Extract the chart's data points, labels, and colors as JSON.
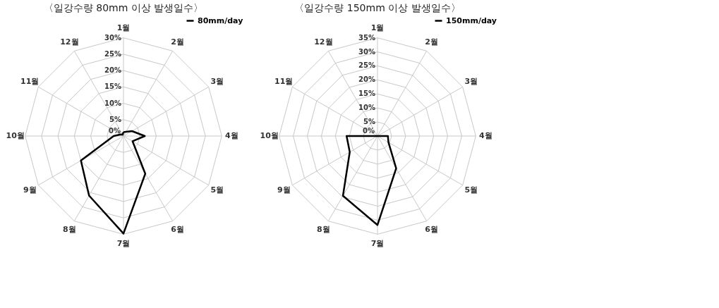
{
  "chart_data": [
    {
      "type": "radar",
      "title": "〈일강수량 80mm 이상 발생일수〉",
      "categories": [
        "1월",
        "2월",
        "3월",
        "4월",
        "5월",
        "6월",
        "7월",
        "8월",
        "9월",
        "10월",
        "11월",
        "12월"
      ],
      "ylim": [
        0,
        30
      ],
      "yticks": [
        {
          "value": 0,
          "label": "0%"
        },
        {
          "value": 5,
          "label": "5%"
        },
        {
          "value": 10,
          "label": "10%"
        },
        {
          "value": 15,
          "label": "15%"
        },
        {
          "value": 20,
          "label": "20%"
        },
        {
          "value": 25,
          "label": "25%"
        },
        {
          "value": 30,
          "label": "30%"
        }
      ],
      "grid": true,
      "legend": "top right",
      "series": [
        {
          "name": "80mm/day",
          "color": "#000000",
          "values": [
            1.2,
            1.5,
            3,
            6.5,
            3.2,
            13.3,
            29.8,
            21,
            15,
            3,
            1,
            0.5
          ]
        }
      ]
    },
    {
      "type": "radar",
      "title": "〈일강수량 150mm 이상 발생일수〉",
      "categories": [
        "1월",
        "2월",
        "3월",
        "4월",
        "5월",
        "6월",
        "7월",
        "8월",
        "9월",
        "10월",
        "11월",
        "12월"
      ],
      "ylim": [
        0,
        35
      ],
      "yticks": [
        {
          "value": 0,
          "label": "0%"
        },
        {
          "value": 5,
          "label": "5%"
        },
        {
          "value": 10,
          "label": "10%"
        },
        {
          "value": 15,
          "label": "15%"
        },
        {
          "value": 20,
          "label": "20%"
        },
        {
          "value": 25,
          "label": "25%"
        },
        {
          "value": 30,
          "label": "30%"
        },
        {
          "value": 35,
          "label": "35%"
        }
      ],
      "grid": true,
      "legend": "top right",
      "series": [
        {
          "name": "150mm/day",
          "color": "#000000",
          "values": [
            0,
            0,
            0,
            3.7,
            4.5,
            13.3,
            31.7,
            24.6,
            11.4,
            11,
            0,
            0
          ]
        }
      ]
    }
  ]
}
